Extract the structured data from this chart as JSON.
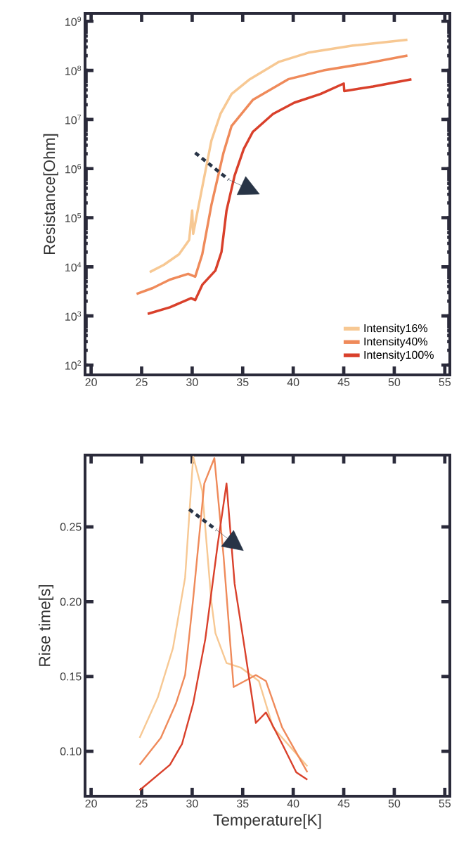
{
  "chart_data": [
    {
      "type": "line",
      "ylabel": "Resistance[Ohm]",
      "log": "y",
      "legend": "bottom right",
      "xlim": [
        19.4,
        55.5
      ],
      "ylim": [
        63,
        1450000000
      ],
      "xticks": [
        20,
        25,
        30,
        35,
        40,
        45,
        50,
        55
      ],
      "yticks": [
        {
          "value": 100,
          "label": "10$^{2}$"
        },
        {
          "value": 1000,
          "label": "10$^{3}$"
        },
        {
          "value": 10000,
          "label": "10$^{4}$"
        },
        {
          "value": 100000,
          "label": "10$^{5}$"
        },
        {
          "value": 1000000,
          "label": "10$^{6}$"
        },
        {
          "value": 10000000,
          "label": "10$^{7}$"
        },
        {
          "value": 100000000,
          "label": "10$^{8}$"
        },
        {
          "value": 1000000000,
          "label": "10$^{9}$"
        }
      ],
      "series": [
        {
          "name": "Intensity16%",
          "color": "#f7c893",
          "x": [
            25.8,
            27.2,
            28.7,
            29.7,
            30.0,
            30.1,
            31.0,
            31.9,
            32.8,
            33.9,
            35.7,
            38.6,
            41.5,
            45.9,
            51.3
          ],
          "values": [
            7800,
            11000,
            18000,
            35000,
            140000,
            47000,
            420000,
            3700000,
            13000000,
            33000000,
            66000000,
            150000000,
            230000000,
            320000000,
            420000000
          ]
        },
        {
          "name": "Intensity40%",
          "color": "#ef8a5a",
          "x": [
            24.5,
            26.1,
            27.8,
            29.6,
            30.3,
            31.0,
            31.9,
            33.1,
            33.9,
            36.0,
            39.5,
            43.0,
            47.3,
            51.3
          ],
          "values": [
            2800,
            3700,
            5500,
            7200,
            6300,
            18000,
            180000,
            2100000,
            7400000,
            25000000,
            66000000,
            100000000,
            140000000,
            200000000
          ]
        },
        {
          "name": "Intensity100%",
          "color": "#d9402b",
          "x": [
            25.6,
            27.8,
            29.9,
            30.3,
            31.0,
            32.3,
            32.9,
            33.4,
            34.2,
            35.1,
            36.0,
            38.0,
            40.1,
            42.7,
            45.0,
            45.05,
            47.9,
            51.7
          ],
          "values": [
            1100,
            1500,
            2300,
            2100,
            4300,
            8400,
            20000,
            140000,
            720000,
            2500000,
            5600000,
            13000000,
            22000000,
            33000000,
            54000000,
            38000000,
            47000000,
            66000000
          ]
        }
      ]
    },
    {
      "type": "line",
      "xlabel": "Temperature[K]",
      "ylabel": "Rise time[s]",
      "xlim": [
        19.4,
        55.5
      ],
      "ylim": [
        0.07,
        0.298
      ],
      "xticks": [
        20,
        25,
        30,
        35,
        40,
        45,
        50,
        55
      ],
      "yticks": [
        {
          "value": 0.1,
          "label": "0.10"
        },
        {
          "value": 0.15,
          "label": "0.15"
        },
        {
          "value": 0.2,
          "label": "0.20"
        },
        {
          "value": 0.25,
          "label": "0.25"
        }
      ],
      "series": [
        {
          "color": "#f7c893",
          "x": [
            24.8,
            26.6,
            28.1,
            29.3,
            30.1,
            31.0,
            31.9,
            32.3,
            33.4,
            34.8,
            36.6,
            38.0,
            41.4
          ],
          "values": [
            0.109,
            0.136,
            0.169,
            0.216,
            0.297,
            0.274,
            0.2,
            0.179,
            0.159,
            0.156,
            0.147,
            0.116,
            0.09
          ]
        },
        {
          "color": "#ef8a5a",
          "x": [
            24.8,
            26.9,
            28.4,
            29.3,
            30.1,
            31.2,
            32.2,
            33.1,
            34.1,
            36.3,
            37.3,
            38.9,
            41.4
          ],
          "values": [
            0.091,
            0.109,
            0.132,
            0.151,
            0.202,
            0.279,
            0.296,
            0.231,
            0.143,
            0.151,
            0.147,
            0.116,
            0.086
          ]
        },
        {
          "color": "#d9402b",
          "x": [
            24.8,
            27.8,
            29.0,
            30.1,
            31.3,
            32.5,
            33.4,
            34.2,
            35.1,
            36.3,
            37.3,
            38.9,
            40.3,
            41.4
          ],
          "values": [
            0.074,
            0.091,
            0.105,
            0.132,
            0.175,
            0.237,
            0.279,
            0.212,
            0.173,
            0.119,
            0.126,
            0.105,
            0.086,
            0.081
          ]
        }
      ]
    }
  ]
}
